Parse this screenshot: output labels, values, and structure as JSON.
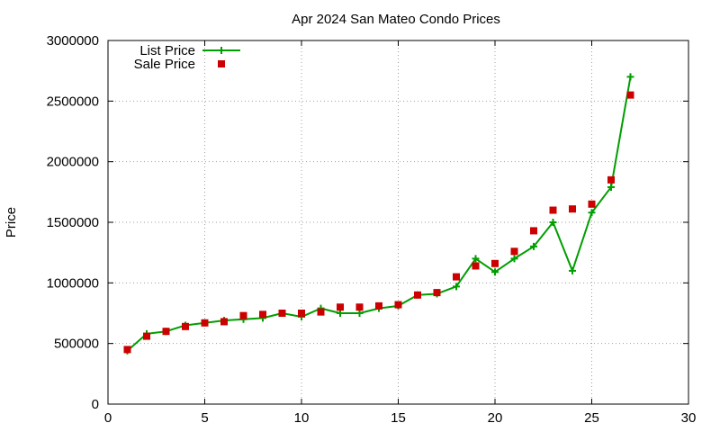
{
  "chart_data": {
    "type": "line",
    "title": "Apr 2024 San Mateo Condo Prices",
    "xlabel": "",
    "ylabel": "Price",
    "xlim": [
      0,
      30
    ],
    "ylim": [
      0,
      3000000
    ],
    "x_ticks": [
      0,
      5,
      10,
      15,
      20,
      25,
      30
    ],
    "y_ticks": [
      0,
      500000,
      1000000,
      1500000,
      2000000,
      2500000,
      3000000
    ],
    "grid": true,
    "legend_position": "top-left",
    "series": [
      {
        "name": "List Price",
        "style": "lines+points",
        "marker": "plus",
        "color": "#009e00",
        "x": [
          1,
          2,
          3,
          4,
          5,
          6,
          7,
          8,
          9,
          10,
          11,
          12,
          13,
          14,
          15,
          16,
          17,
          18,
          19,
          20,
          21,
          22,
          23,
          24,
          25,
          26,
          27
        ],
        "values": [
          440000,
          580000,
          600000,
          650000,
          670000,
          690000,
          700000,
          710000,
          750000,
          720000,
          790000,
          750000,
          750000,
          790000,
          810000,
          900000,
          910000,
          970000,
          1200000,
          1090000,
          1200000,
          1300000,
          1500000,
          1100000,
          1580000,
          1790000,
          2700000
        ]
      },
      {
        "name": "Sale Price",
        "style": "points",
        "marker": "square",
        "color": "#cc0000",
        "x": [
          1,
          2,
          3,
          4,
          5,
          6,
          7,
          8,
          9,
          10,
          11,
          12,
          13,
          14,
          15,
          16,
          17,
          18,
          19,
          20,
          21,
          22,
          23,
          24,
          25,
          26,
          27
        ],
        "values": [
          450000,
          560000,
          600000,
          640000,
          670000,
          680000,
          730000,
          740000,
          750000,
          750000,
          760000,
          800000,
          800000,
          810000,
          820000,
          900000,
          920000,
          1050000,
          1140000,
          1160000,
          1260000,
          1430000,
          1600000,
          1610000,
          1650000,
          1850000,
          2550000
        ]
      }
    ]
  }
}
